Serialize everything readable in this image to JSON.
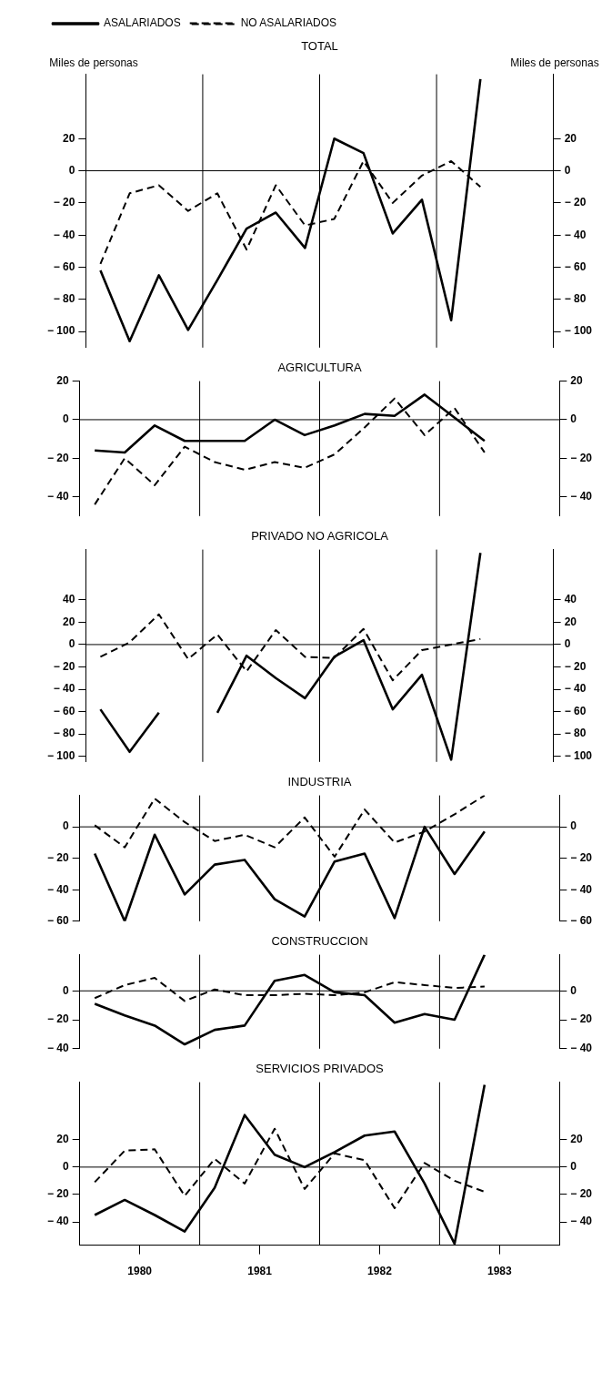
{
  "chart_data": [
    {
      "type": "line",
      "title": "TOTAL",
      "ylabel": "Miles de personas",
      "y2label": "Miles de personas",
      "legend": "top left",
      "categories": [
        null,
        null,
        null,
        null,
        null,
        null,
        null,
        null,
        null,
        null,
        null,
        null,
        null,
        null
      ],
      "tick_labels": "y",
      "series": [
        {
          "name": "ASALARIADOS",
          "color": "#000000",
          "line_style": "solid",
          "values": [
            -62,
            -106,
            -65,
            -99,
            -68,
            -36,
            -26,
            -48,
            20,
            11,
            -39,
            -18,
            -93,
            57
          ]
        },
        {
          "name": "NO ASALARIADOS",
          "color": "#000000",
          "line_style": "dashed",
          "values": [
            -58,
            -14,
            -9,
            -25,
            -14,
            -49,
            -9,
            -34,
            -30,
            6,
            -20,
            -3,
            6,
            -10
          ]
        }
      ],
      "ylim": [
        -110,
        60
      ],
      "yticks": [
        20,
        0,
        {
          "value": -20,
          "label": "− 20"
        },
        {
          "value": -40,
          "label": "− 40"
        },
        {
          "value": -60,
          "label": "− 60"
        },
        {
          "value": -80,
          "label": "− 80"
        },
        {
          "value": -100,
          "label": "− 100"
        }
      ],
      "y2lim": [
        -110,
        60
      ],
      "y2ticks": [
        20,
        0,
        {
          "value": -20,
          "label": "− 20"
        },
        {
          "value": -40,
          "label": "− 40"
        },
        {
          "value": -60,
          "label": "− 60"
        },
        {
          "value": -80,
          "label": "− 80"
        },
        {
          "value": -100,
          "label": "− 100"
        }
      ],
      "ref_lines": [
        {
          "axis": "y",
          "value": 0
        }
      ]
    },
    {
      "type": "line",
      "title": "AGRICULTURA",
      "categories": [
        null,
        null,
        null,
        null,
        null,
        null,
        null,
        null,
        null,
        null,
        null,
        null,
        null,
        null
      ],
      "tick_labels": "y",
      "series": [
        {
          "color": "#000000",
          "line_style": "solid",
          "values": [
            -16,
            -17,
            -3,
            -11,
            -11,
            -11,
            0,
            -8,
            -3,
            3,
            2,
            13,
            1,
            -11
          ]
        },
        {
          "color": "#000000",
          "line_style": "dashed",
          "values": [
            -44,
            -20,
            -34,
            -14,
            -22,
            -26,
            -22,
            -25,
            -18,
            -4,
            11,
            -8,
            6,
            -17
          ]
        }
      ],
      "ylim": [
        -50,
        20
      ],
      "yticks": [
        20,
        0,
        {
          "value": -20,
          "label": "− 20"
        },
        {
          "value": -40,
          "label": "− 40"
        }
      ],
      "y2lim": [
        -50,
        20
      ],
      "y2ticks": [
        20,
        0,
        {
          "value": -20,
          "label": "− 20"
        },
        {
          "value": -40,
          "label": "− 40"
        }
      ],
      "ref_lines": [
        {
          "axis": "y",
          "value": 0
        }
      ]
    },
    {
      "type": "line",
      "title": "PRIVADO NO AGRICOLA",
      "categories": [
        null,
        null,
        null,
        null,
        null,
        null,
        null,
        null,
        null,
        null,
        null,
        null,
        null,
        null
      ],
      "tick_labels": "y",
      "series": [
        {
          "color": "#000000",
          "line_style": "solid",
          "values": [
            -58,
            -96,
            -61,
            null,
            -61,
            -10,
            -30,
            -48,
            -11,
            4,
            -58,
            -27,
            -103,
            82
          ]
        },
        {
          "color": "#000000",
          "line_style": "dashed",
          "values": [
            -11,
            2,
            27,
            -13,
            9,
            -24,
            13,
            -11,
            -12,
            14,
            -32,
            -5,
            0,
            5
          ]
        }
      ],
      "ylim": [
        -105,
        85
      ],
      "yticks": [
        40,
        20,
        0,
        {
          "value": -20,
          "label": "− 20"
        },
        {
          "value": -40,
          "label": "− 40"
        },
        {
          "value": -60,
          "label": "− 60"
        },
        {
          "value": -80,
          "label": "− 80"
        },
        {
          "value": -100,
          "label": "− 100"
        }
      ],
      "y2lim": [
        -105,
        85
      ],
      "y2ticks": [
        40,
        20,
        0,
        {
          "value": -20,
          "label": "− 20"
        },
        {
          "value": -40,
          "label": "− 40"
        },
        {
          "value": -60,
          "label": "− 60"
        },
        {
          "value": -80,
          "label": "− 80"
        },
        {
          "value": -100,
          "label": "− 100"
        }
      ],
      "ref_lines": [
        {
          "axis": "y",
          "value": 0
        }
      ]
    },
    {
      "type": "line",
      "title": "INDUSTRIA",
      "categories": [
        null,
        null,
        null,
        null,
        null,
        null,
        null,
        null,
        null,
        null,
        null,
        null,
        null,
        null
      ],
      "tick_labels": "y",
      "series": [
        {
          "color": "#000000",
          "line_style": "solid",
          "values": [
            -17,
            -60,
            -5,
            -43,
            -24,
            -21,
            -46,
            -57,
            -22,
            -17,
            -58,
            0,
            -30,
            -3
          ]
        },
        {
          "color": "#000000",
          "line_style": "dashed",
          "values": [
            1,
            -13,
            18,
            3,
            -9,
            -5,
            -13,
            6,
            -19,
            11,
            -10,
            -3,
            8,
            20
          ]
        }
      ],
      "ylim": [
        -60,
        20
      ],
      "yticks": [
        0,
        {
          "value": -20,
          "label": "− 20"
        },
        {
          "value": -40,
          "label": "− 40"
        },
        {
          "value": -60,
          "label": "− 60"
        }
      ],
      "y2lim": [
        -60,
        20
      ],
      "y2ticks": [
        0,
        {
          "value": -20,
          "label": "− 20"
        },
        {
          "value": -40,
          "label": "− 40"
        },
        {
          "value": -60,
          "label": "− 60"
        }
      ],
      "ref_lines": [
        {
          "axis": "y",
          "value": 0
        }
      ]
    },
    {
      "type": "line",
      "title": "CONSTRUCCION",
      "categories": [
        null,
        null,
        null,
        null,
        null,
        null,
        null,
        null,
        null,
        null,
        null,
        null,
        null,
        null
      ],
      "tick_labels": "y",
      "series": [
        {
          "color": "#000000",
          "line_style": "solid",
          "values": [
            -9,
            -17,
            -24,
            -37,
            -27,
            -24,
            7,
            11,
            -1,
            -3,
            -22,
            -16,
            -20,
            25
          ]
        },
        {
          "color": "#000000",
          "line_style": "dashed",
          "values": [
            -5,
            4,
            9,
            -7,
            1,
            -3,
            -3,
            -2,
            -3,
            -1,
            6,
            4,
            2,
            3
          ]
        }
      ],
      "ylim": [
        -40,
        25
      ],
      "yticks": [
        0,
        {
          "value": -20,
          "label": "− 20"
        },
        {
          "value": -40,
          "label": "− 40"
        }
      ],
      "y2lim": [
        -40,
        25
      ],
      "y2ticks": [
        0,
        {
          "value": -20,
          "label": "− 20"
        },
        {
          "value": -40,
          "label": "− 40"
        }
      ],
      "ref_lines": [
        {
          "axis": "y",
          "value": 0
        }
      ]
    },
    {
      "type": "line",
      "title": "SERVICIOS PRIVADOS",
      "x": [
        1980.125,
        1980.375,
        1980.625,
        1980.875,
        1981.125,
        1981.375,
        1981.625,
        1981.875,
        1982.125,
        1982.375,
        1982.625,
        1982.875,
        1983.125,
        1983.375
      ],
      "xlim": [
        1980,
        1984
      ],
      "xticks": [
        {
          "value": 1980.5,
          "label": "1980"
        },
        {
          "value": 1981.5,
          "label": "1981"
        },
        {
          "value": 1982.5,
          "label": "1982"
        },
        {
          "value": 1983.5,
          "label": "1983"
        }
      ],
      "series": [
        {
          "color": "#000000",
          "line_style": "solid",
          "values": [
            -35,
            -24,
            -35,
            -47,
            -15,
            38,
            9,
            0,
            11,
            23,
            26,
            -12,
            -56,
            60
          ]
        },
        {
          "color": "#000000",
          "line_style": "dashed",
          "values": [
            -11,
            12,
            13,
            -21,
            6,
            -12,
            28,
            -16,
            10,
            5,
            -30,
            3,
            -10,
            -18
          ]
        }
      ],
      "ylim": [
        -57,
        62
      ],
      "yticks": [
        20,
        0,
        {
          "value": -20,
          "label": "− 20"
        },
        {
          "value": -40,
          "label": "− 40"
        }
      ],
      "y2lim": [
        -57,
        62
      ],
      "y2ticks": [
        20,
        0,
        {
          "value": -20,
          "label": "− 20"
        },
        {
          "value": -40,
          "label": "− 40"
        }
      ],
      "ref_lines": [
        {
          "axis": "y",
          "value": 0
        },
        {
          "axis": "x",
          "value": 1981
        },
        {
          "axis": "x",
          "value": 1982
        },
        {
          "axis": "x",
          "value": 1983
        }
      ]
    }
  ]
}
